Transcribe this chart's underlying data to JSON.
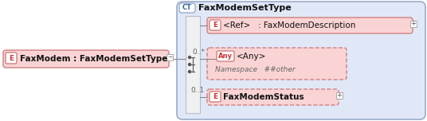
{
  "bg_color": "#ffffff",
  "panel_bg": "#e0e8f8",
  "panel_edge": "#9aabcc",
  "bar_fill": "#f0f0f0",
  "bar_edge": "#bbbbcc",
  "box_fill_pink": "#fad4d4",
  "box_edge_pink": "#d08080",
  "box_fill_white": "#ffffff",
  "badge_text_color": "#cc3333",
  "badge_edge_pink": "#d08080",
  "ct_badge_edge": "#9aabcc",
  "ct_text_color": "#336699",
  "line_color": "#888888",
  "mult_color": "#666666",
  "ns_color": "#666666",
  "expand_edge": "#aaaaaa",
  "text_color": "#111111",
  "title_ct_label": "CT",
  "main_label": "E",
  "main_text": "FaxModem : FaxModemSetType",
  "ref_label": "E",
  "ref_text": "<Ref>   : FaxModemDescription",
  "any_label": "Any",
  "any_text": "<Any>",
  "ns_text": "Namespace   ##other",
  "any_mult": "0..*",
  "status_label": "E",
  "status_text": "FaxModemStatus",
  "status_mult": "0..1",
  "figsize": [
    5.36,
    1.52
  ],
  "dpi": 100
}
